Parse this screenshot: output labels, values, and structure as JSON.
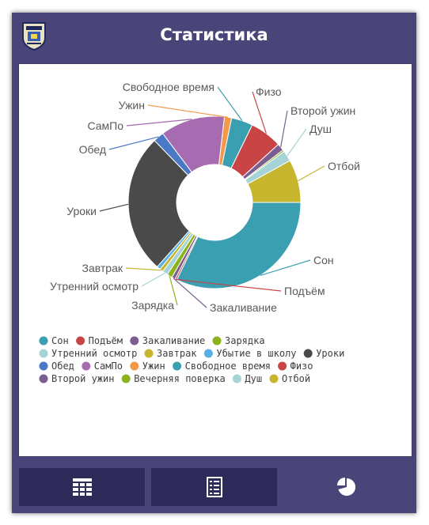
{
  "header": {
    "title": "Статистика"
  },
  "nav": {
    "items": [
      {
        "icon": "grid-icon",
        "state": "inactive"
      },
      {
        "icon": "list-icon",
        "state": "inactive"
      },
      {
        "icon": "pie-chart-icon",
        "state": "active"
      }
    ]
  },
  "chart_data": {
    "type": "pie",
    "style": "donut",
    "title": "",
    "legend_position": "bottom",
    "slices": [
      {
        "label": "Сон",
        "value": 480,
        "color": "#3a9fb0"
      },
      {
        "label": "Подъём",
        "value": 5,
        "color": "#c94545"
      },
      {
        "label": "Закаливание",
        "value": 10,
        "color": "#7b5e8f"
      },
      {
        "label": "Зарядка",
        "value": 15,
        "color": "#8bb31c"
      },
      {
        "label": "Утренний осмотр",
        "value": 15,
        "color": "#a6d3d6"
      },
      {
        "label": "Завтрак",
        "value": 10,
        "color": "#c7b52e"
      },
      {
        "label": "Убытие в школу",
        "value": 10,
        "color": "#5aaee6"
      },
      {
        "label": "Уроки",
        "value": 390,
        "color": "#4a4a4a"
      },
      {
        "label": "Обед",
        "value": 30,
        "color": "#4a7ac6"
      },
      {
        "label": "СамПо",
        "value": 180,
        "color": "#a66bb0"
      },
      {
        "label": "Ужин",
        "value": 20,
        "color": "#f29a4a"
      },
      {
        "label": "Свободное время",
        "value": 60,
        "color": "#3a9fb0"
      },
      {
        "label": "Физо",
        "value": 90,
        "color": "#c94545"
      },
      {
        "label": "Второй ужин",
        "value": 20,
        "color": "#7b5e8f"
      },
      {
        "label": "Вечерняя поверка",
        "value": 5,
        "color": "#8bb31c"
      },
      {
        "label": "Душ",
        "value": 30,
        "color": "#a6d3d6"
      },
      {
        "label": "Отбой",
        "value": 120,
        "color": "#c7b52e"
      }
    ],
    "callout_labels": [
      "Сон",
      "Подъём",
      "Закаливание",
      "Зарядка",
      "Утренний осмотр",
      "Завтрак",
      "Уроки",
      "Обед",
      "СамПо",
      "Ужин",
      "Свободное время",
      "Физо",
      "Второй ужин",
      "Душ",
      "Отбой"
    ]
  }
}
